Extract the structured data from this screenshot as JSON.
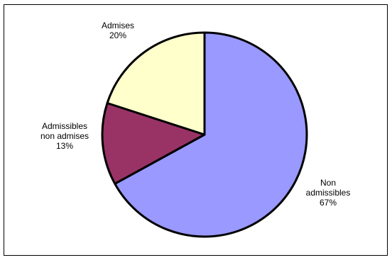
{
  "chart_data": {
    "type": "pie",
    "title": "",
    "start": "top, clockwise",
    "legend": "none",
    "slices": [
      {
        "value": 67,
        "label_lines": [
          "Non",
          "admissibles",
          "67%"
        ],
        "color": "#9999FF"
      },
      {
        "value": 13,
        "label_lines": [
          "Admissibles",
          "non admises",
          "13%"
        ],
        "color": "#993366"
      },
      {
        "value": 20,
        "label_lines": [
          "Admises",
          "20%"
        ],
        "color": "#FFFFCC"
      }
    ],
    "outline_color": "#000000"
  }
}
